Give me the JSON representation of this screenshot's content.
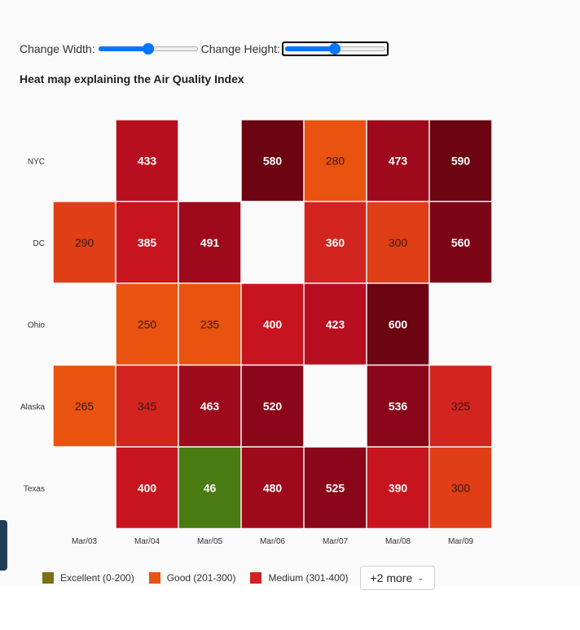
{
  "controls": {
    "width_label": "Change Width:",
    "height_label": "Change Height:",
    "width_value": 0.5,
    "height_value": 0.5
  },
  "chart_data": {
    "type": "heatmap",
    "title": "Heat map explaining the Air Quality Index",
    "x": [
      "Mar/03",
      "Mar/04",
      "Mar/05",
      "Mar/06",
      "Mar/07",
      "Mar/08",
      "Mar/09"
    ],
    "y": [
      "NYC",
      "DC",
      "Ohio",
      "Alaska",
      "Texas"
    ],
    "values": [
      [
        null,
        433,
        null,
        580,
        280,
        473,
        590
      ],
      [
        290,
        385,
        491,
        null,
        360,
        300,
        560
      ],
      [
        null,
        250,
        235,
        400,
        423,
        600,
        null
      ],
      [
        265,
        345,
        463,
        520,
        null,
        536,
        325
      ],
      [
        null,
        400,
        46,
        480,
        525,
        390,
        300
      ]
    ],
    "legend": [
      {
        "label": "Excellent (0-200)",
        "color": "#7a7014"
      },
      {
        "label": "Good (201-300)",
        "color": "#e9520f"
      },
      {
        "label": "Medium (301-400)",
        "color": "#d32121"
      }
    ],
    "legend_more": "+2 more",
    "legend_position": "bottom-left"
  }
}
